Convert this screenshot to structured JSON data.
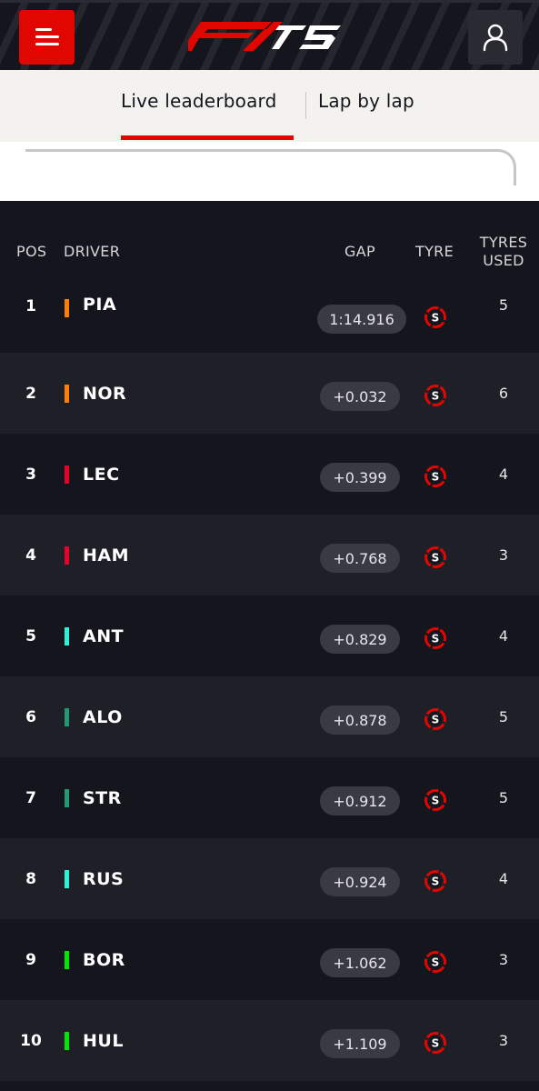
{
  "header": {
    "menu_icon": "hamburger-menu-icon",
    "logo_label": "F1 75",
    "account_icon": "user-account-icon",
    "brand_color": "#e10600"
  },
  "tabs": [
    {
      "label": "Live leaderboard",
      "active": true
    },
    {
      "label": "Lap by lap",
      "active": false
    }
  ],
  "table": {
    "headers": {
      "pos": "POS",
      "driver": "DRIVER",
      "gap": "GAP",
      "tyre": "TYRE",
      "tyres_used_line1": "TYRES",
      "tyres_used_line2": "USED"
    },
    "rows": [
      {
        "pos": "1",
        "driver": "PIA",
        "team_color": "#ff8000",
        "gap": "1:14.916",
        "tyre": "S",
        "tyres_used": "5"
      },
      {
        "pos": "2",
        "driver": "NOR",
        "team_color": "#ff8000",
        "gap": "+0.032",
        "tyre": "S",
        "tyres_used": "6"
      },
      {
        "pos": "3",
        "driver": "LEC",
        "team_color": "#e8002d",
        "gap": "+0.399",
        "tyre": "S",
        "tyres_used": "4"
      },
      {
        "pos": "4",
        "driver": "HAM",
        "team_color": "#e8002d",
        "gap": "+0.768",
        "tyre": "S",
        "tyres_used": "3"
      },
      {
        "pos": "5",
        "driver": "ANT",
        "team_color": "#27f4d2",
        "gap": "+0.829",
        "tyre": "S",
        "tyres_used": "4"
      },
      {
        "pos": "6",
        "driver": "ALO",
        "team_color": "#229971",
        "gap": "+0.878",
        "tyre": "S",
        "tyres_used": "5"
      },
      {
        "pos": "7",
        "driver": "STR",
        "team_color": "#229971",
        "gap": "+0.912",
        "tyre": "S",
        "tyres_used": "5"
      },
      {
        "pos": "8",
        "driver": "RUS",
        "team_color": "#27f4d2",
        "gap": "+0.924",
        "tyre": "S",
        "tyres_used": "4"
      },
      {
        "pos": "9",
        "driver": "BOR",
        "team_color": "#00e701",
        "gap": "+1.062",
        "tyre": "S",
        "tyres_used": "3"
      },
      {
        "pos": "10",
        "driver": "HUL",
        "team_color": "#00e701",
        "gap": "+1.109",
        "tyre": "S",
        "tyres_used": "3"
      }
    ],
    "tyre_color": "#e10600"
  }
}
